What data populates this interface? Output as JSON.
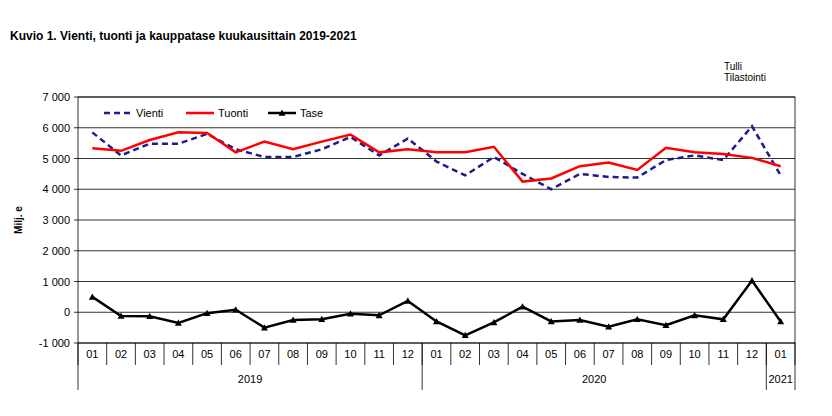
{
  "chart_data": {
    "type": "line",
    "title": "Kuvio  1. Vienti, tuonti ja kauppatase kuukausittain 2019-2021",
    "y_label": "Milj. e",
    "annotations": [
      "Tulli",
      "Tilastointi"
    ],
    "categories": [
      "01",
      "02",
      "03",
      "04",
      "05",
      "06",
      "07",
      "08",
      "09",
      "10",
      "11",
      "12",
      "01",
      "02",
      "03",
      "04",
      "05",
      "06",
      "07",
      "08",
      "09",
      "10",
      "11",
      "12",
      "01"
    ],
    "category_groups": [
      {
        "label": "2019",
        "size": 12
      },
      {
        "label": "2020",
        "size": 12
      },
      {
        "label": "2021",
        "size": 1
      }
    ],
    "ylim": [
      -1000,
      7000
    ],
    "yticks": [
      {
        "value": -1000,
        "label": "-1 000"
      },
      0,
      {
        "value": 1000,
        "label": "1 000"
      },
      {
        "value": 2000,
        "label": "2 000"
      },
      {
        "value": 3000,
        "label": "3 000"
      },
      {
        "value": 4000,
        "label": "4 000"
      },
      {
        "value": 5000,
        "label": "5 000"
      },
      {
        "value": 6000,
        "label": "6 000"
      },
      {
        "value": 7000,
        "label": "7 000"
      }
    ],
    "grid": true,
    "legend": "top-left",
    "series": [
      {
        "name": "Vienti",
        "color": "#1c1c8a",
        "line_style": "dashed",
        "marker": "none",
        "values": [
          5850,
          5100,
          5480,
          5480,
          5800,
          5300,
          5050,
          5050,
          5300,
          5700,
          5100,
          5650,
          4900,
          4450,
          5050,
          4500,
          4000,
          4500,
          4400,
          4380,
          4950,
          5100,
          4950,
          6050,
          4450
        ]
      },
      {
        "name": "Tuonti",
        "color": "#ff0000",
        "line_style": "solid",
        "marker": "none",
        "values": [
          5330,
          5250,
          5600,
          5850,
          5830,
          5200,
          5550,
          5300,
          5550,
          5780,
          5200,
          5300,
          5200,
          5200,
          5380,
          4250,
          4350,
          4750,
          4870,
          4630,
          5350,
          5200,
          5150,
          5020,
          4750
        ]
      },
      {
        "name": "Tase",
        "color": "#000000",
        "line_style": "solid",
        "marker": "triangle",
        "values": [
          500,
          -120,
          -130,
          -350,
          -30,
          80,
          -500,
          -250,
          -230,
          -50,
          -100,
          370,
          -300,
          -750,
          -330,
          180,
          -300,
          -250,
          -470,
          -230,
          -420,
          -100,
          -230,
          1030,
          -300
        ]
      }
    ]
  }
}
